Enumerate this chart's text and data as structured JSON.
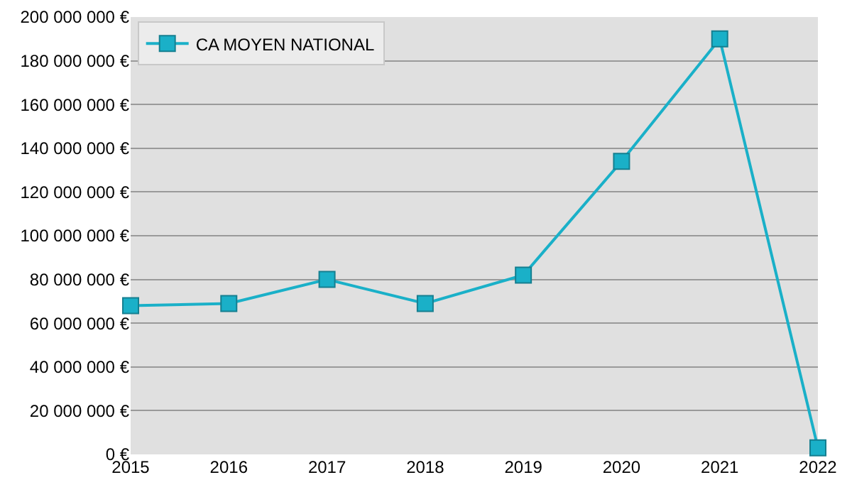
{
  "chart_data": {
    "type": "line",
    "x": [
      2015,
      2016,
      2017,
      2018,
      2019,
      2020,
      2021,
      2022
    ],
    "series": [
      {
        "name": "CA MOYEN NATIONAL",
        "color": "#1ab0c8",
        "values": [
          68000000,
          69000000,
          80000000,
          69000000,
          82000000,
          134000000,
          190000000,
          3000000
        ]
      }
    ],
    "xlim": [
      2015,
      2022
    ],
    "xticks": [
      2015,
      2016,
      2017,
      2018,
      2019,
      2020,
      2021,
      2022
    ],
    "ylim": [
      0,
      200000000
    ],
    "yticks": [
      {
        "value": 0,
        "label": "0 €"
      },
      {
        "value": 20000000,
        "label": "20 000 000 €"
      },
      {
        "value": 40000000,
        "label": "40 000 000 €"
      },
      {
        "value": 60000000,
        "label": "60 000 000 €"
      },
      {
        "value": 80000000,
        "label": "80 000 000 €"
      },
      {
        "value": 100000000,
        "label": "100 000 000 €"
      },
      {
        "value": 120000000,
        "label": "120 000 000 €"
      },
      {
        "value": 140000000,
        "label": "140 000 000 €"
      },
      {
        "value": 160000000,
        "label": "160 000 000 €"
      },
      {
        "value": 180000000,
        "label": "180 000 000 €"
      },
      {
        "value": 200000000,
        "label": "200 000 000 €"
      }
    ],
    "grid": "y",
    "legend": "top left",
    "marker": "square",
    "line_style": "solid"
  }
}
